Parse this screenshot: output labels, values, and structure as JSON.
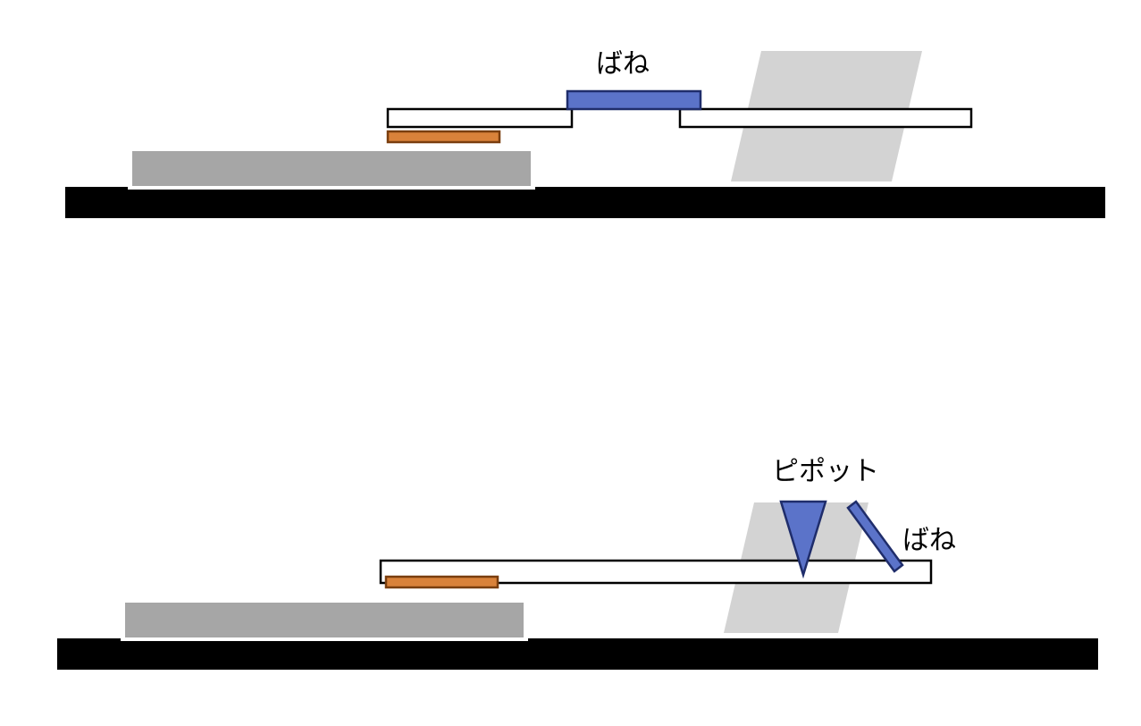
{
  "labels": {
    "top_spring": "ばね",
    "pivot": "ピポット",
    "bottom_spring": "ばね"
  },
  "colors": {
    "base": "#000000",
    "block": "#a6a6a6",
    "strip": "#d9823a",
    "strip_border": "#7a3e0e",
    "spring": "#5b73c9",
    "spring_border": "#1f2d6b",
    "shadow": "#d3d3d3",
    "bar_fill": "#ffffff",
    "bar_border": "#000000"
  }
}
